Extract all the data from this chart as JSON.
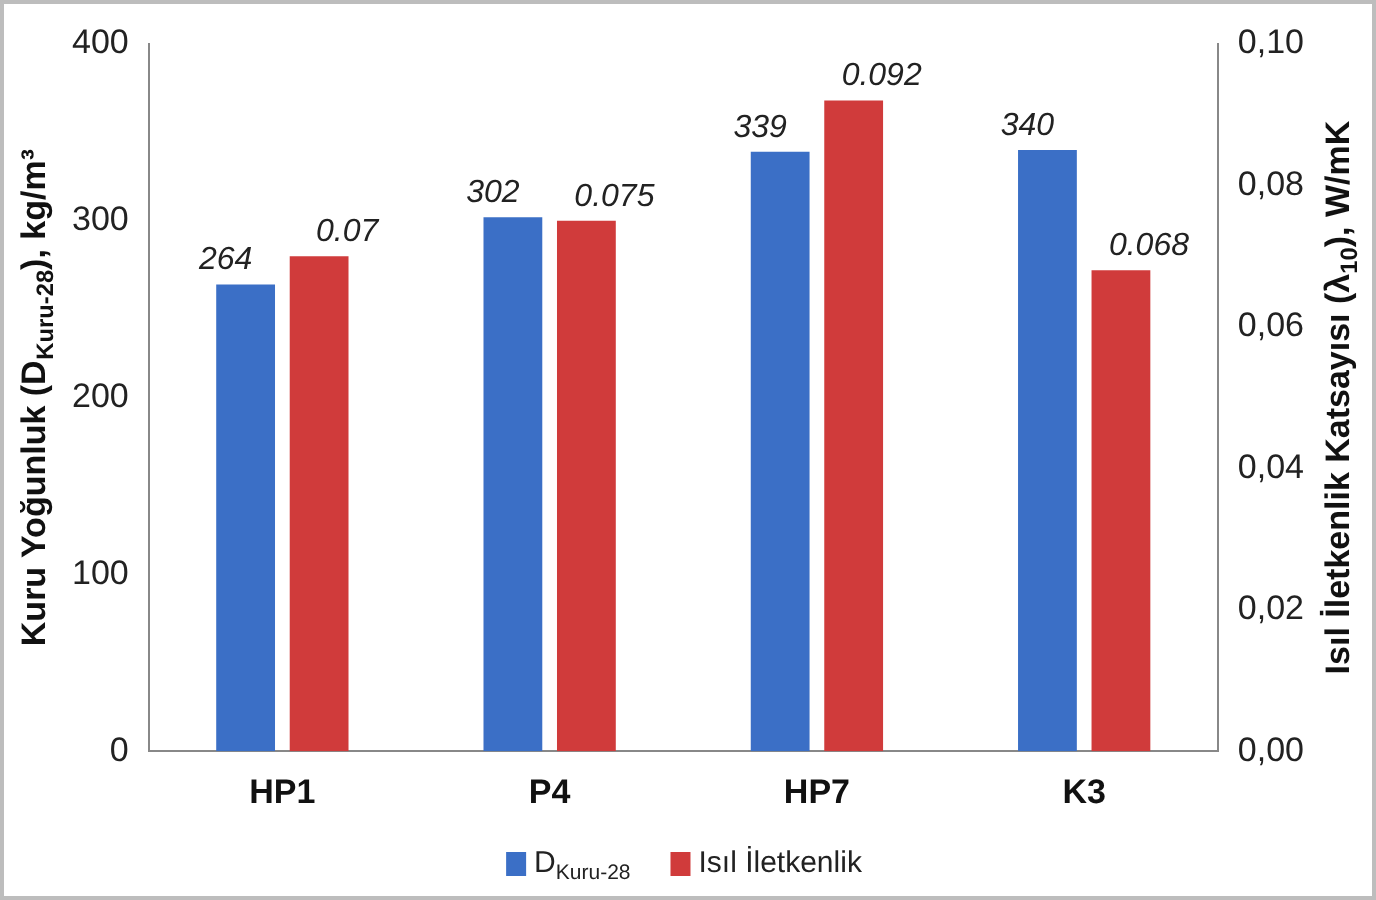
{
  "chart_data": {
    "type": "bar",
    "categories": [
      "HP1",
      "P4",
      "HP7",
      "K3"
    ],
    "series": [
      {
        "name": "D$_{Kuru-28}$",
        "color": "#3b6fc6",
        "values": [
          264,
          302,
          339,
          340
        ]
      },
      {
        "name": "Isıl İletkenlik",
        "color": "#d03b3b",
        "values": [
          0.07,
          0.075,
          0.092,
          0.068
        ],
        "axis": "y2"
      }
    ],
    "ylabel": "Kuru Yoğunluk (D$_{Kuru-28}$), kg/m³",
    "y2label": "Isıl İletkenlik Katsayısı (λ$_{10}$), W/mK",
    "ylim": [
      0,
      400
    ],
    "yticks": [
      0,
      100,
      200,
      300,
      400
    ],
    "y2lim": [
      0,
      0.1
    ],
    "y2ticks": [
      {
        "value": 0,
        "label": "0,00"
      },
      {
        "value": 0.02,
        "label": "0,02"
      },
      {
        "value": 0.04,
        "label": "0,04"
      },
      {
        "value": 0.06,
        "label": "0,06"
      },
      {
        "value": 0.08,
        "label": "0,08"
      },
      {
        "value": 0.1,
        "label": "0,10"
      }
    ],
    "data_labels": true,
    "legend": "bottom",
    "grid": false
  }
}
